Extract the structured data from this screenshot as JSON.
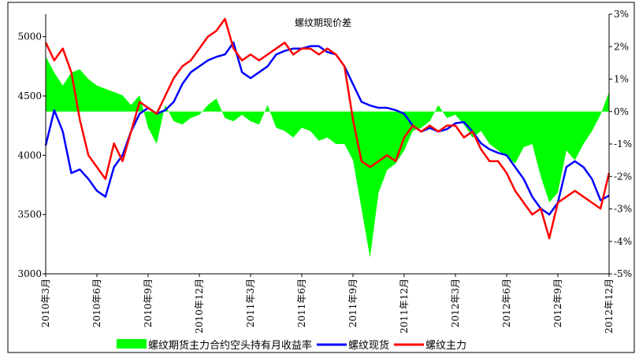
{
  "chart_data": {
    "type": "line",
    "title": "螺纹期现价差",
    "categories": [
      "2010年3月",
      null,
      null,
      null,
      null,
      null,
      "2010年6月",
      null,
      null,
      null,
      null,
      null,
      "2010年9月",
      null,
      null,
      null,
      null,
      null,
      "2010年12月",
      null,
      null,
      null,
      null,
      null,
      "2011年3月",
      null,
      null,
      null,
      null,
      null,
      "2011年6月",
      null,
      null,
      null,
      null,
      null,
      "2011年9月",
      null,
      null,
      null,
      null,
      null,
      "2011年12月",
      null,
      null,
      null,
      null,
      null,
      "2012年3月",
      null,
      null,
      null,
      null,
      null,
      "2012年6月",
      null,
      null,
      null,
      null,
      null,
      "2012年9月",
      null,
      null,
      null,
      null,
      null,
      "2012年12月"
    ],
    "series": [
      {
        "name": "螺纹期货主力合约空头持有月收益率",
        "type": "area",
        "axis": "y2",
        "color": "#00ff00",
        "values": [
          1.7,
          1.2,
          0.8,
          1.2,
          1.3,
          1.0,
          0.8,
          0.7,
          0.6,
          0.5,
          0.2,
          0.5,
          -0.5,
          -1.0,
          0.2,
          -0.3,
          -0.4,
          -0.2,
          -0.1,
          0.2,
          0.4,
          -0.2,
          -0.3,
          -0.1,
          -0.3,
          -0.4,
          0.2,
          -0.5,
          -0.6,
          -0.8,
          -0.5,
          -0.6,
          -0.9,
          -0.8,
          -1.0,
          -1.0,
          -1.5,
          -3.0,
          -4.5,
          -2.5,
          -1.8,
          -1.6,
          -1.2,
          -0.6,
          -0.5,
          -0.3,
          0.2,
          -0.2,
          -0.1,
          -0.4,
          -0.8,
          -0.6,
          -1.0,
          -1.2,
          -1.4,
          -1.6,
          -1.1,
          -1.0,
          -2.0,
          -2.8,
          -2.5,
          -1.2,
          -1.5,
          -1.0,
          -0.6,
          -0.1,
          0.6
        ]
      },
      {
        "name": "螺纹现货",
        "type": "line",
        "color": "#0000ff",
        "values": [
          4083,
          4380,
          4200,
          3850,
          3880,
          3800,
          3700,
          3650,
          3900,
          4000,
          4200,
          4350,
          4400,
          4350,
          4380,
          4450,
          4600,
          4700,
          4750,
          4800,
          4830,
          4850,
          4950,
          4700,
          4650,
          4700,
          4750,
          4850,
          4880,
          4900,
          4900,
          4920,
          4920,
          4870,
          4850,
          4750,
          4600,
          4450,
          4420,
          4400,
          4400,
          4380,
          4350,
          4250,
          4200,
          4230,
          4200,
          4220,
          4270,
          4280,
          4200,
          4100,
          4050,
          4020,
          4000,
          3900,
          3800,
          3650,
          3550,
          3500,
          3600,
          3900,
          3950,
          3900,
          3800,
          3620,
          3660
        ]
      },
      {
        "name": "螺纹主力",
        "type": "line",
        "color": "#ff0000",
        "values": [
          4950,
          4800,
          4900,
          4700,
          4300,
          4000,
          3900,
          3800,
          4100,
          3950,
          4200,
          4450,
          4400,
          4350,
          4500,
          4650,
          4750,
          4800,
          4900,
          5000,
          5050,
          5150,
          4900,
          4800,
          4850,
          4800,
          4850,
          4900,
          4950,
          4850,
          4900,
          4900,
          4850,
          4900,
          4850,
          4750,
          4300,
          3950,
          3900,
          3950,
          4000,
          3950,
          4150,
          4250,
          4200,
          4250,
          4200,
          4250,
          4250,
          4150,
          4200,
          4050,
          3950,
          3950,
          3850,
          3700,
          3600,
          3500,
          3550,
          3300,
          3600,
          3650,
          3700,
          3650,
          3600,
          3550,
          3850
        ]
      }
    ],
    "ylim": [
      3000,
      5190
    ],
    "yticks": [
      3000,
      3500,
      4000,
      4500,
      5000
    ],
    "y2lim": [
      -5,
      3
    ],
    "y2ticks": [
      {
        "value": 3,
        "label": "3%"
      },
      {
        "value": 2,
        "label": "2%"
      },
      {
        "value": 1,
        "label": "1%"
      },
      {
        "value": 0,
        "label": "0%"
      },
      {
        "value": -1,
        "label": "-1%"
      },
      {
        "value": -2,
        "label": "-2%"
      },
      {
        "value": -3,
        "label": "-3%"
      },
      {
        "value": -4,
        "label": "-4%"
      },
      {
        "value": -5,
        "label": "-5%"
      }
    ],
    "legend": "bottom"
  }
}
